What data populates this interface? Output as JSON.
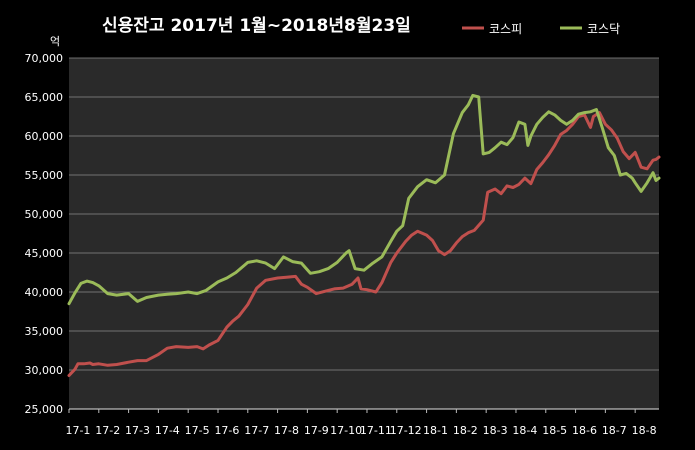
{
  "chart_data": {
    "type": "line",
    "title": "신용잔고 2017년 1월~2018년8월23일",
    "ylabel": "억",
    "xlabel": "",
    "ylim": [
      25000,
      70000
    ],
    "yticks": [
      25000,
      30000,
      35000,
      40000,
      45000,
      50000,
      55000,
      60000,
      65000,
      70000
    ],
    "ytick_labels": [
      "25,000",
      "30,000",
      "35,000",
      "40,000",
      "45,000",
      "50,000",
      "55,000",
      "60,000",
      "65,000",
      "70,000"
    ],
    "categories": [
      "17-1",
      "17-2",
      "17-3",
      "17-4",
      "17-5",
      "17-6",
      "17-7",
      "17-8",
      "17-9",
      "17-10",
      "17-11",
      "17-12",
      "18-1",
      "18-2",
      "18-3",
      "18-4",
      "18-5",
      "18-6",
      "18-7",
      "18-8"
    ],
    "x_end": 19.8,
    "grid": true,
    "legend_position": "top-right",
    "series": [
      {
        "name": "코스피",
        "color": "#c0504d",
        "points": [
          [
            0.0,
            29300
          ],
          [
            0.2,
            30100
          ],
          [
            0.3,
            30800
          ],
          [
            0.5,
            30800
          ],
          [
            0.7,
            30900
          ],
          [
            0.8,
            30700
          ],
          [
            1.0,
            30800
          ],
          [
            1.3,
            30600
          ],
          [
            1.6,
            30700
          ],
          [
            2.0,
            31000
          ],
          [
            2.3,
            31200
          ],
          [
            2.6,
            31200
          ],
          [
            3.0,
            32000
          ],
          [
            3.3,
            32800
          ],
          [
            3.6,
            33000
          ],
          [
            4.0,
            32900
          ],
          [
            4.3,
            33000
          ],
          [
            4.5,
            32700
          ],
          [
            4.7,
            33200
          ],
          [
            5.0,
            33800
          ],
          [
            5.3,
            35500
          ],
          [
            5.5,
            36300
          ],
          [
            5.7,
            36900
          ],
          [
            6.0,
            38400
          ],
          [
            6.3,
            40500
          ],
          [
            6.6,
            41500
          ],
          [
            7.0,
            41800
          ],
          [
            7.3,
            41900
          ],
          [
            7.6,
            42000
          ],
          [
            7.8,
            41000
          ],
          [
            8.0,
            40600
          ],
          [
            8.3,
            39800
          ],
          [
            8.6,
            40100
          ],
          [
            8.9,
            40400
          ],
          [
            9.2,
            40500
          ],
          [
            9.5,
            41000
          ],
          [
            9.7,
            41800
          ],
          [
            9.8,
            40400
          ],
          [
            10.0,
            40300
          ],
          [
            10.3,
            40000
          ],
          [
            10.5,
            41200
          ],
          [
            10.8,
            43800
          ],
          [
            11.0,
            45000
          ],
          [
            11.3,
            46500
          ],
          [
            11.5,
            47300
          ],
          [
            11.7,
            47800
          ],
          [
            12.0,
            47300
          ],
          [
            12.2,
            46600
          ],
          [
            12.4,
            45300
          ],
          [
            12.6,
            44800
          ],
          [
            12.8,
            45300
          ],
          [
            13.0,
            46300
          ],
          [
            13.2,
            47100
          ],
          [
            13.4,
            47600
          ],
          [
            13.6,
            47900
          ],
          [
            13.9,
            49200
          ],
          [
            14.05,
            52800
          ],
          [
            14.3,
            53200
          ],
          [
            14.5,
            52600
          ],
          [
            14.7,
            53600
          ],
          [
            14.9,
            53400
          ],
          [
            15.1,
            53800
          ],
          [
            15.3,
            54600
          ],
          [
            15.5,
            53900
          ],
          [
            15.7,
            55700
          ],
          [
            15.9,
            56600
          ],
          [
            16.1,
            57600
          ],
          [
            16.3,
            58800
          ],
          [
            16.5,
            60200
          ],
          [
            16.7,
            60700
          ],
          [
            16.9,
            61500
          ],
          [
            17.1,
            62500
          ],
          [
            17.3,
            62700
          ],
          [
            17.5,
            61100
          ],
          [
            17.6,
            62500
          ],
          [
            17.8,
            63000
          ],
          [
            18.0,
            61500
          ],
          [
            18.2,
            60800
          ],
          [
            18.4,
            59700
          ],
          [
            18.6,
            58000
          ],
          [
            18.8,
            57100
          ],
          [
            19.0,
            57900
          ],
          [
            19.2,
            56000
          ],
          [
            19.4,
            55800
          ],
          [
            19.6,
            56900
          ],
          [
            19.7,
            57000
          ],
          [
            19.8,
            57300
          ]
        ]
      },
      {
        "name": "코스닥",
        "color": "#9bbb59",
        "points": [
          [
            0.0,
            38500
          ],
          [
            0.2,
            39900
          ],
          [
            0.4,
            41100
          ],
          [
            0.6,
            41400
          ],
          [
            0.8,
            41200
          ],
          [
            1.0,
            40800
          ],
          [
            1.3,
            39800
          ],
          [
            1.6,
            39600
          ],
          [
            2.0,
            39800
          ],
          [
            2.3,
            38800
          ],
          [
            2.6,
            39300
          ],
          [
            3.0,
            39600
          ],
          [
            3.3,
            39700
          ],
          [
            3.6,
            39800
          ],
          [
            4.0,
            40000
          ],
          [
            4.3,
            39800
          ],
          [
            4.6,
            40200
          ],
          [
            5.0,
            41300
          ],
          [
            5.3,
            41800
          ],
          [
            5.6,
            42500
          ],
          [
            6.0,
            43800
          ],
          [
            6.3,
            44000
          ],
          [
            6.6,
            43700
          ],
          [
            6.9,
            43000
          ],
          [
            7.2,
            44500
          ],
          [
            7.5,
            43900
          ],
          [
            7.8,
            43700
          ],
          [
            8.1,
            42400
          ],
          [
            8.4,
            42600
          ],
          [
            8.7,
            43000
          ],
          [
            9.0,
            43800
          ],
          [
            9.3,
            45000
          ],
          [
            9.4,
            45300
          ],
          [
            9.6,
            43000
          ],
          [
            9.9,
            42800
          ],
          [
            10.2,
            43700
          ],
          [
            10.5,
            44500
          ],
          [
            10.8,
            46500
          ],
          [
            11.0,
            47800
          ],
          [
            11.2,
            48500
          ],
          [
            11.4,
            52000
          ],
          [
            11.7,
            53500
          ],
          [
            12.0,
            54400
          ],
          [
            12.3,
            54000
          ],
          [
            12.6,
            55000
          ],
          [
            12.9,
            60300
          ],
          [
            13.2,
            63000
          ],
          [
            13.4,
            64000
          ],
          [
            13.55,
            65200
          ],
          [
            13.75,
            65000
          ],
          [
            13.9,
            57700
          ],
          [
            14.1,
            57900
          ],
          [
            14.3,
            58500
          ],
          [
            14.5,
            59200
          ],
          [
            14.7,
            58900
          ],
          [
            14.9,
            59800
          ],
          [
            15.1,
            61800
          ],
          [
            15.3,
            61500
          ],
          [
            15.4,
            58800
          ],
          [
            15.5,
            60000
          ],
          [
            15.7,
            61500
          ],
          [
            15.9,
            62400
          ],
          [
            16.1,
            63100
          ],
          [
            16.3,
            62700
          ],
          [
            16.5,
            62000
          ],
          [
            16.7,
            61500
          ],
          [
            16.9,
            62000
          ],
          [
            17.1,
            62800
          ],
          [
            17.3,
            63000
          ],
          [
            17.5,
            63100
          ],
          [
            17.7,
            63400
          ],
          [
            17.9,
            61000
          ],
          [
            18.1,
            58500
          ],
          [
            18.3,
            57500
          ],
          [
            18.5,
            55000
          ],
          [
            18.7,
            55200
          ],
          [
            18.9,
            54600
          ],
          [
            19.0,
            54000
          ],
          [
            19.2,
            52900
          ],
          [
            19.4,
            54000
          ],
          [
            19.6,
            55300
          ],
          [
            19.7,
            54300
          ],
          [
            19.8,
            54600
          ]
        ]
      }
    ]
  }
}
